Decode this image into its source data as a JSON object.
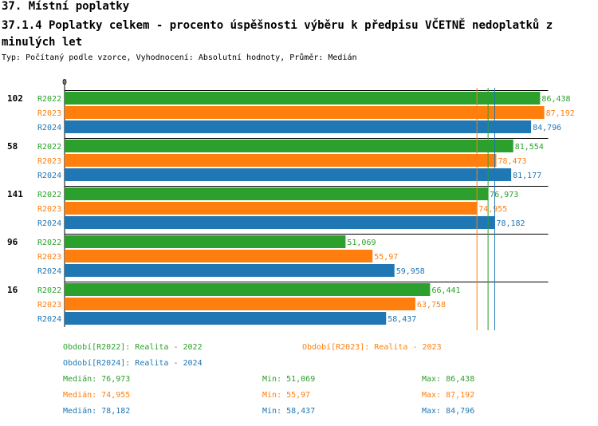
{
  "title": "37. Místní poplatky",
  "subtitle": "37.1.4 Poplatky celkem - procento úspěšnosti výběru k předpisu VČETNĚ nedoplatků z minulých let",
  "description": "Typ: Počítaný podle vzorce, Vyhodnocení: Absolutní hodnoty, Průměr: Medián",
  "colors": {
    "R2022": "#2ca02c",
    "R2023": "#ff7f0e",
    "R2024": "#1f77b4"
  },
  "chart_data": {
    "type": "bar",
    "orientation": "horizontal",
    "axis_zero_label": "0",
    "xlim": [
      0,
      100
    ],
    "categories": [
      "102",
      "58",
      "141",
      "96",
      "16"
    ],
    "series": [
      {
        "name": "R2022",
        "values": [
          86.438,
          81.554,
          76.973,
          51.069,
          66.441
        ],
        "labels": [
          "86,438",
          "81,554",
          "76,973",
          "51,069",
          "66,441"
        ]
      },
      {
        "name": "R2023",
        "values": [
          87.192,
          78.473,
          74.955,
          55.97,
          63.758
        ],
        "labels": [
          "87,192",
          "78,473",
          "74,955",
          "55,97",
          "63,758"
        ]
      },
      {
        "name": "R2024",
        "values": [
          84.796,
          81.177,
          78.182,
          59.958,
          58.437
        ],
        "labels": [
          "84,796",
          "81,177",
          "78,182",
          "59,958",
          "58,437"
        ]
      }
    ],
    "median_lines": {
      "R2022": 76.973,
      "R2023": 74.955,
      "R2024": 78.182
    }
  },
  "legend": {
    "r2022": "Období[R2022]: Realita - 2022",
    "r2023": "Období[R2023]: Realita - 2023",
    "r2024": "Období[R2024]: Realita - 2024"
  },
  "stats": [
    {
      "median": "Medián: 76,973",
      "min": "Min: 51,069",
      "max": "Max: 86,438"
    },
    {
      "median": "Medián: 74,955",
      "min": "Min: 55,97",
      "max": "Max: 87,192"
    },
    {
      "median": "Medián: 78,182",
      "min": "Min: 58,437",
      "max": "Max: 84,796"
    }
  ]
}
